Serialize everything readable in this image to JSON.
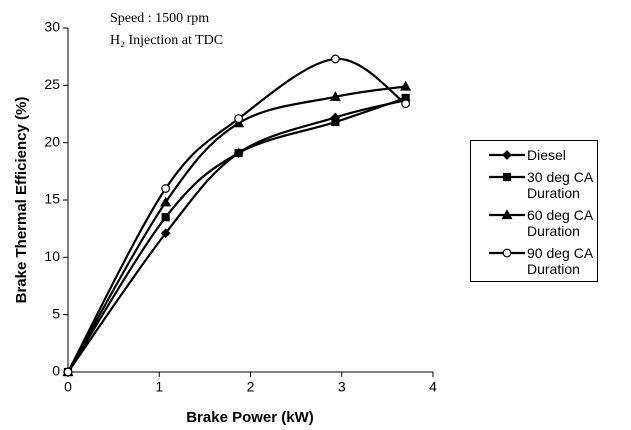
{
  "chart_data": {
    "type": "line",
    "annotations": [
      "Speed : 1500 rpm",
      "H₂ Injection at TDC"
    ],
    "x_label": "Brake Power (kW)",
    "y_label": "Brake Thermal Efficiency (%)",
    "x": [
      0,
      1.07,
      1.87,
      2.93,
      3.7
    ],
    "series": [
      {
        "name": "Diesel",
        "color": "#000000",
        "marker": "diamond",
        "values": [
          0,
          12.1,
          19.1,
          22.2,
          23.7
        ]
      },
      {
        "name": "30 deg CA Duration",
        "color": "#000000",
        "marker": "square",
        "values": [
          0,
          13.5,
          19.1,
          21.8,
          23.9
        ]
      },
      {
        "name": "60 deg CA Duration",
        "color": "#000000",
        "marker": "triangle",
        "values": [
          0,
          14.8,
          21.7,
          24.0,
          24.9
        ]
      },
      {
        "name": "90 deg CA Duration",
        "color": "#000000",
        "marker": "circle",
        "values": [
          0,
          16.0,
          22.1,
          27.3,
          23.4
        ]
      }
    ],
    "xlim": [
      0,
      4
    ],
    "xticks": [
      0,
      1,
      2,
      3,
      4
    ],
    "ylim": [
      0,
      30
    ],
    "yticks": [
      0,
      5,
      10,
      15,
      20,
      25,
      30
    ],
    "smooth": true
  }
}
